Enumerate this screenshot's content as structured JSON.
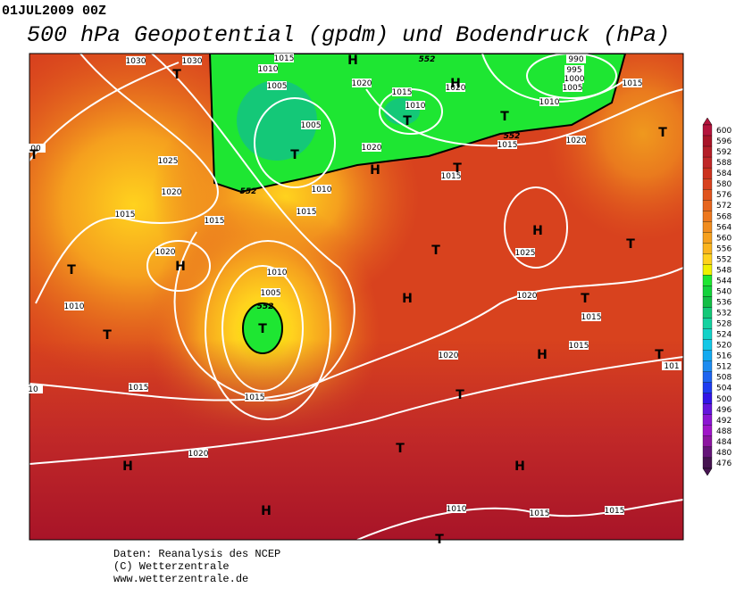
{
  "header": {
    "date": "01JUL2009 00Z",
    "title": "500 hPa Geopotential (gpdm) und Bodendruck (hPa)"
  },
  "isobar_labels": [
    "1030",
    "1030",
    "1015",
    "1010",
    "1005",
    "1020",
    "1015",
    "1010",
    "1020",
    "990",
    "995",
    "1000",
    "1005",
    "1015",
    "1010",
    "1020",
    "1015",
    "1005",
    "1010",
    "1020",
    "1015",
    "1025",
    "1020",
    "1015",
    "1015",
    "1015",
    "1020",
    "1010",
    "1005",
    "1010",
    "1025",
    "1020",
    "1015",
    "1015",
    "1020",
    "1015",
    "1015",
    "1020",
    "1010",
    "1015",
    "1015",
    "10",
    "101",
    "00"
  ],
  "contour_labels": [
    "552",
    "552",
    "552",
    "552"
  ],
  "pressure_centers": [
    "T",
    "H",
    "H",
    "T",
    "T",
    "T",
    "H",
    "T",
    "T",
    "T",
    "H",
    "T",
    "T",
    "T",
    "H",
    "H",
    "T",
    "T",
    "T",
    "H",
    "T",
    "T",
    "T",
    "H",
    "H",
    "H",
    "T"
  ],
  "colorbar": {
    "values": [
      600,
      596,
      592,
      588,
      584,
      580,
      576,
      572,
      568,
      564,
      560,
      556,
      552,
      548,
      544,
      540,
      536,
      532,
      528,
      524,
      520,
      516,
      512,
      508,
      504,
      500,
      496,
      492,
      488,
      484,
      480,
      476
    ],
    "colors": [
      "#b4143c",
      "#a81428",
      "#b41e28",
      "#c02828",
      "#cc321e",
      "#d8421e",
      "#e0541e",
      "#e6661e",
      "#ec781e",
      "#f08c1e",
      "#f5a01e",
      "#fab41e",
      "#ffd21e",
      "#f0f000",
      "#1ee632",
      "#14d23c",
      "#14be46",
      "#14c878",
      "#14d2a0",
      "#14d2c8",
      "#14c8e6",
      "#14aaf0",
      "#1e8cf0",
      "#1e64f0",
      "#1e3cf0",
      "#3214e6",
      "#6414dc",
      "#8c14d2",
      "#a014c8",
      "#8c14a0",
      "#641478",
      "#461450"
    ]
  },
  "footer": {
    "line1": "Daten: Reanalysis des NCEP",
    "line2": "(C) Wetterzentrale",
    "line3": "www.wetterzentrale.de"
  }
}
